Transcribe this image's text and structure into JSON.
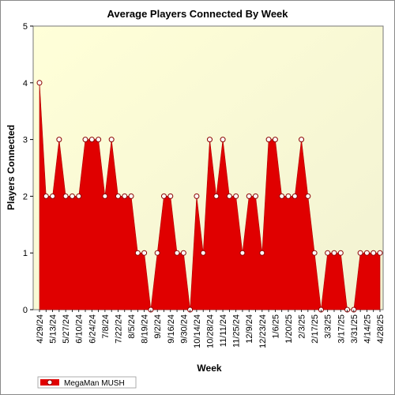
{
  "chart_data": {
    "type": "area",
    "title": "Average Players Connected By Week",
    "xlabel": "Week",
    "ylabel": "Players Connected",
    "ylim": [
      0,
      5
    ],
    "yticks": [
      "0",
      "1",
      "2",
      "3",
      "4",
      "5"
    ],
    "x": [
      "4/29/24",
      "5/6/24",
      "5/13/24",
      "5/20/24",
      "5/27/24",
      "6/3/24",
      "6/10/24",
      "6/17/24",
      "6/24/24",
      "7/1/24",
      "7/8/24",
      "7/15/24",
      "7/22/24",
      "7/29/24",
      "8/5/24",
      "8/12/24",
      "8/19/24",
      "8/26/24",
      "9/2/24",
      "9/9/24",
      "9/16/24",
      "9/23/24",
      "9/30/24",
      "10/7/24",
      "10/14/24",
      "10/21/24",
      "10/28/24",
      "11/4/24",
      "11/11/24",
      "11/18/24",
      "11/25/24",
      "12/2/24",
      "12/9/24",
      "12/16/24",
      "12/23/24",
      "12/30/24",
      "1/6/25",
      "1/13/25",
      "1/20/25",
      "1/27/25",
      "2/3/25",
      "2/10/25",
      "2/17/25",
      "2/24/25",
      "3/3/25",
      "3/10/25",
      "3/17/25",
      "3/24/25",
      "3/31/25",
      "4/7/25",
      "4/14/25",
      "4/21/25",
      "4/28/25"
    ],
    "x_tick_labels": [
      "4/29/24",
      "5/13/24",
      "5/27/24",
      "6/10/24",
      "6/24/24",
      "7/8/24",
      "7/22/24",
      "8/5/24",
      "8/19/24",
      "9/2/24",
      "9/16/24",
      "9/30/24",
      "10/14/24",
      "10/28/24",
      "11/11/24",
      "11/25/24",
      "12/9/24",
      "12/23/24",
      "1/6/25",
      "1/20/25",
      "2/3/25",
      "2/17/25",
      "3/3/25",
      "3/17/25",
      "3/31/25",
      "4/14/25",
      "4/28/25"
    ],
    "series": [
      {
        "name": "MegaMan MUSH",
        "color": "#e00000",
        "values": [
          4,
          2,
          2,
          3,
          2,
          2,
          2,
          3,
          3,
          3,
          2,
          3,
          2,
          2,
          2,
          1,
          1,
          0,
          1,
          2,
          2,
          1,
          1,
          0,
          2,
          1,
          3,
          2,
          3,
          2,
          2,
          1,
          2,
          2,
          1,
          3,
          3,
          2,
          2,
          2,
          3,
          2,
          1,
          0,
          1,
          1,
          1,
          0,
          0,
          1,
          1,
          1,
          1
        ]
      }
    ],
    "grid": false,
    "legend_position": "bottom-left",
    "colors": {
      "plot_background": "#ffffe0",
      "area": "#e00000",
      "marker_fill": "#ffffff",
      "marker_stroke": "#8b0000"
    }
  }
}
